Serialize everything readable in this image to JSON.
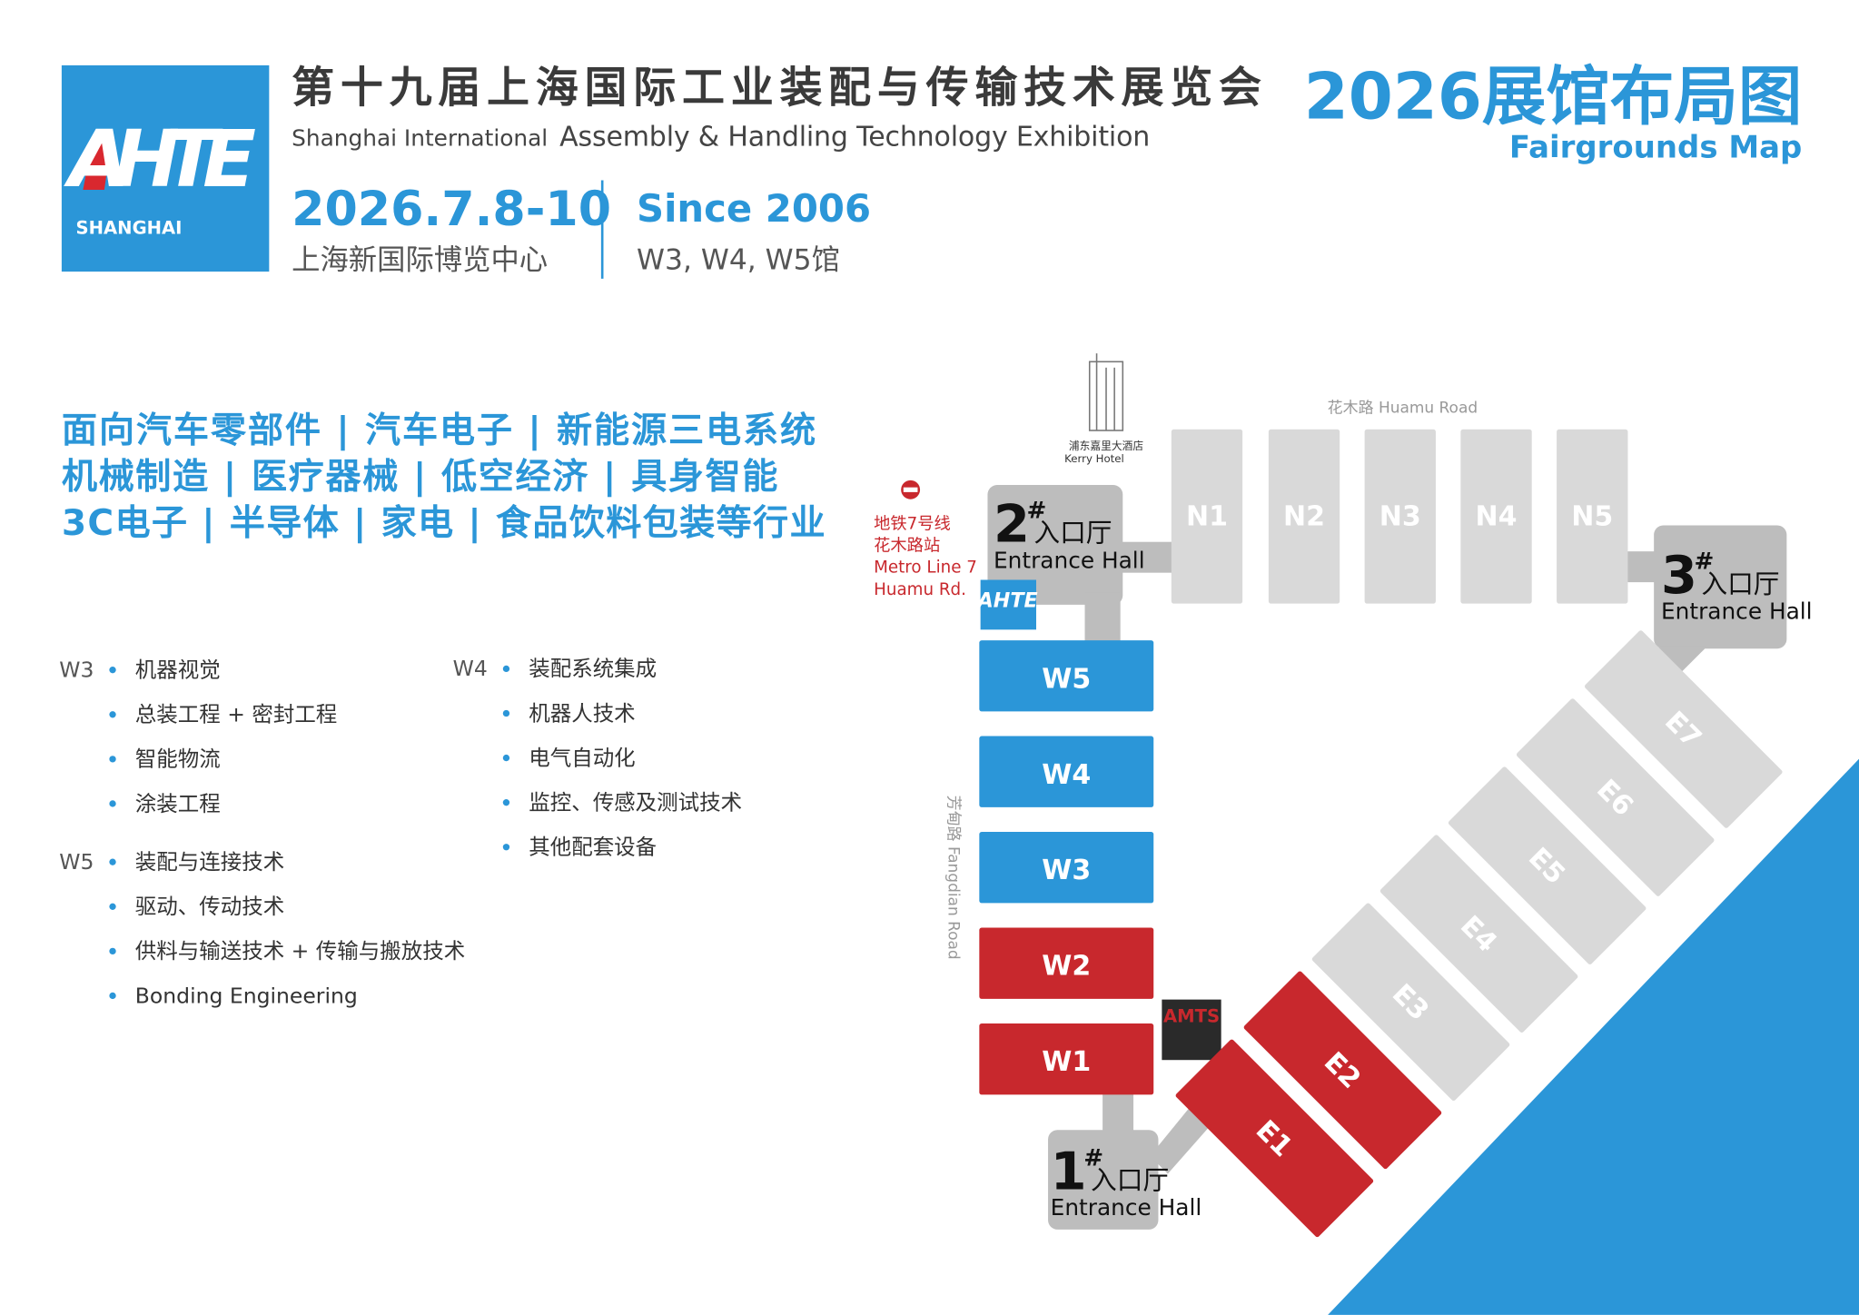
{
  "header": {
    "logo_text": "AHTE",
    "logo_sub": "SHANGHAI",
    "title_cn": "第十九届上海国际工业装配与传输技术展览会",
    "title_en_light": "Shanghai International",
    "title_en_bold": "Assembly & Handling Technology Exhibition",
    "date": "2026.7.8-10",
    "venue": "上海新国际博览中心",
    "since": "Since 2006",
    "halls": "W3, W4, W5馆",
    "map_title": "2026展馆布局图",
    "map_subtitle": "Fairgrounds Map"
  },
  "topics": [
    "面向汽车零部件 | 汽车电子 | 新能源三电系统",
    "机械制造 | 医疗器械 | 低空经济 | 具身智能",
    "3C电子 | 半导体 | 家电 | 食品饮料包装等行业"
  ],
  "exhibits": [
    {
      "hall": "W3",
      "items": [
        "机器视觉",
        "总装工程 + 密封工程",
        "智能物流",
        "涂装工程"
      ]
    },
    {
      "hall": "W5",
      "items": [
        "装配与连接技术",
        "驱动、传动技术",
        "供料与输送技术 + 传输与搬放技术",
        "Bonding Engineering"
      ]
    },
    {
      "hall": "W4",
      "items": [
        "装配系统集成",
        "机器人技术",
        "电气自动化",
        "监控、传感及测试技术",
        "其他配套设备"
      ]
    }
  ],
  "map": {
    "huamu_road": "花木路  Huamu Road",
    "fangdian_road": "芳甸路  Fangdian Road",
    "hotel_cn": "浦东嘉里大酒店",
    "hotel_en": "Kerry Hotel",
    "metro": [
      "地铁7号线",
      "花木路站",
      "Metro Line 7",
      "Huamu Rd."
    ],
    "ahte_logo": "AHTE",
    "amts_logo": "AMTS",
    "entrances": [
      {
        "number": "2",
        "mark": "#",
        "cn": "入口厅",
        "en": "Entrance Hall"
      },
      {
        "number": "3",
        "mark": "#",
        "cn": "入口厅",
        "en": "Entrance Hall"
      },
      {
        "number": "1",
        "mark": "#",
        "cn": "入口厅",
        "en": "Entrance Hall"
      }
    ],
    "north_halls": [
      "N1",
      "N2",
      "N3",
      "N4",
      "N5"
    ],
    "east_halls": [
      "E1",
      "E2",
      "E3",
      "E4",
      "E5",
      "E6",
      "E7"
    ],
    "west_halls": [
      "W5",
      "W4",
      "W3",
      "W2",
      "W1"
    ]
  }
}
